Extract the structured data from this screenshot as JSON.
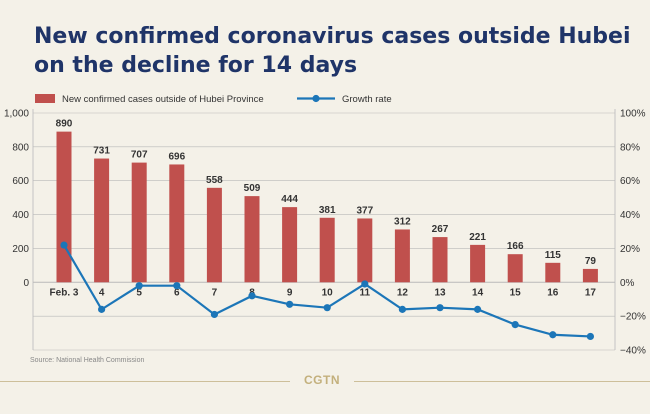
{
  "title_line1": "New confirmed coronavirus cases outside Hubei",
  "title_line2": "on the decline for 14 days",
  "source": "Source: National Health Commission",
  "logo": "CGTN",
  "colors": {
    "bar": "#c0504d",
    "line": "#1c76b8",
    "title": "#1f3468",
    "grid": "#b9b9b9"
  },
  "chart_data": {
    "type": "bar",
    "categories": [
      "Feb. 3",
      "4",
      "5",
      "6",
      "7",
      "8",
      "9",
      "10",
      "11",
      "12",
      "13",
      "14",
      "15",
      "16",
      "17"
    ],
    "series": [
      {
        "name": "New confirmed cases outside of Hubei Province",
        "type": "bar",
        "axis": "left",
        "values": [
          890,
          731,
          707,
          696,
          558,
          509,
          444,
          381,
          377,
          312,
          267,
          221,
          166,
          115,
          79
        ]
      },
      {
        "name": "Growth rate",
        "type": "line",
        "axis": "right",
        "values": [
          22,
          -16,
          -2,
          -2,
          -19,
          -8,
          -13,
          -15,
          -1,
          -16,
          -15,
          -16,
          -25,
          -31,
          -32
        ]
      }
    ],
    "y_left": {
      "ylim": [
        -400,
        1000
      ],
      "ticks": [
        "1,000",
        "800",
        "600",
        "400",
        "200",
        "0"
      ]
    },
    "y_right": {
      "ylim": [
        -40,
        100
      ],
      "ticks": [
        "100%",
        "80%",
        "60%",
        "40%",
        "20%",
        "0%",
        "−20%",
        "−40%"
      ]
    },
    "legend": "top-left",
    "grid": true
  }
}
